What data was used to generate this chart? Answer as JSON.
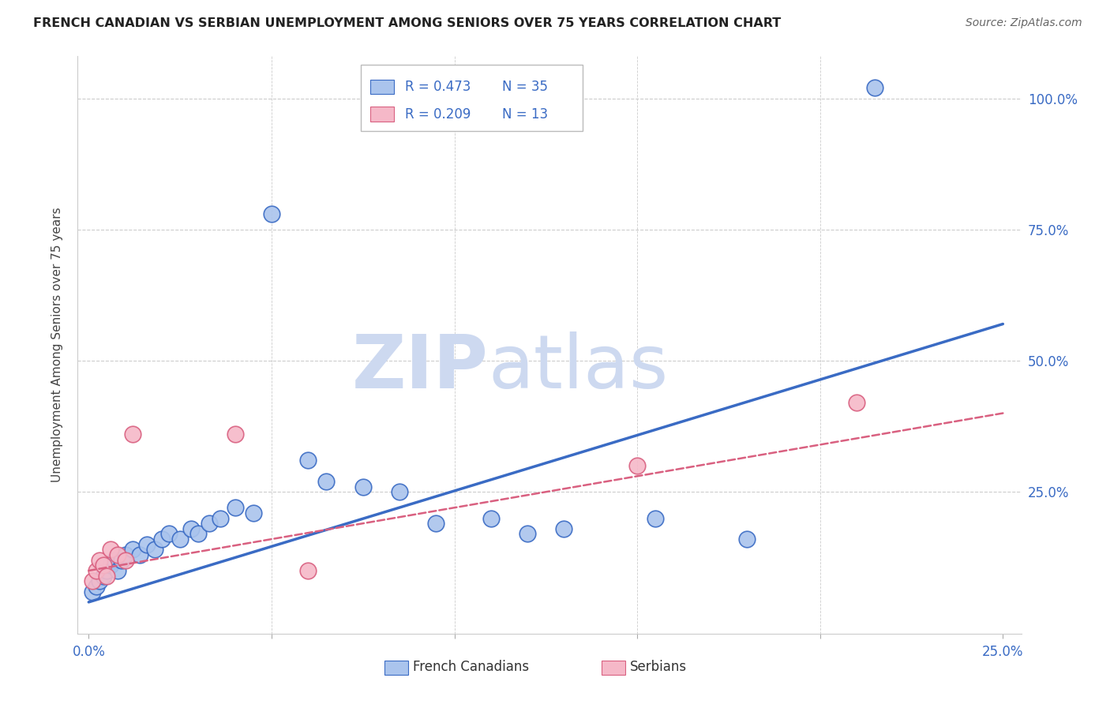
{
  "title": "FRENCH CANADIAN VS SERBIAN UNEMPLOYMENT AMONG SENIORS OVER 75 YEARS CORRELATION CHART",
  "source": "Source: ZipAtlas.com",
  "ylabel": "Unemployment Among Seniors over 75 years",
  "xlim": [
    0.0,
    0.25
  ],
  "ylim": [
    0.0,
    1.08
  ],
  "yticks": [
    0.0,
    0.25,
    0.5,
    0.75,
    1.0
  ],
  "ytick_labels": [
    "",
    "25.0%",
    "50.0%",
    "75.0%",
    "100.0%"
  ],
  "xtick_labels": [
    "0.0%",
    "",
    "",
    "",
    "",
    "25.0%"
  ],
  "xticks": [
    0.0,
    0.05,
    0.1,
    0.15,
    0.2,
    0.25
  ],
  "blue_color": "#aac4ed",
  "pink_color": "#f5b8c8",
  "line_blue": "#3a6bc4",
  "line_pink": "#d96080",
  "watermark_zip_color": "#cdd9f0",
  "watermark_atlas_color": "#cdd9f0",
  "fc_x": [
    0.001,
    0.002,
    0.003,
    0.004,
    0.005,
    0.006,
    0.007,
    0.008,
    0.009,
    0.01,
    0.012,
    0.014,
    0.016,
    0.018,
    0.02,
    0.022,
    0.025,
    0.028,
    0.03,
    0.033,
    0.036,
    0.04,
    0.045,
    0.05,
    0.06,
    0.065,
    0.075,
    0.085,
    0.095,
    0.11,
    0.12,
    0.13,
    0.155,
    0.18,
    0.215
  ],
  "fc_y": [
    0.06,
    0.07,
    0.08,
    0.09,
    0.1,
    0.11,
    0.12,
    0.1,
    0.12,
    0.13,
    0.14,
    0.13,
    0.15,
    0.14,
    0.16,
    0.17,
    0.16,
    0.18,
    0.17,
    0.19,
    0.2,
    0.22,
    0.21,
    0.78,
    0.31,
    0.27,
    0.26,
    0.25,
    0.19,
    0.2,
    0.17,
    0.18,
    0.2,
    0.16,
    1.02
  ],
  "sr_x": [
    0.001,
    0.002,
    0.003,
    0.004,
    0.005,
    0.006,
    0.008,
    0.01,
    0.012,
    0.04,
    0.06,
    0.15,
    0.21
  ],
  "sr_y": [
    0.08,
    0.1,
    0.12,
    0.11,
    0.09,
    0.14,
    0.13,
    0.12,
    0.36,
    0.36,
    0.1,
    0.3,
    0.42
  ],
  "fc_line_x0": 0.0,
  "fc_line_y0": 0.04,
  "fc_line_x1": 0.25,
  "fc_line_y1": 0.57,
  "sr_line_x0": 0.0,
  "sr_line_y0": 0.1,
  "sr_line_x1": 0.25,
  "sr_line_y1": 0.4
}
